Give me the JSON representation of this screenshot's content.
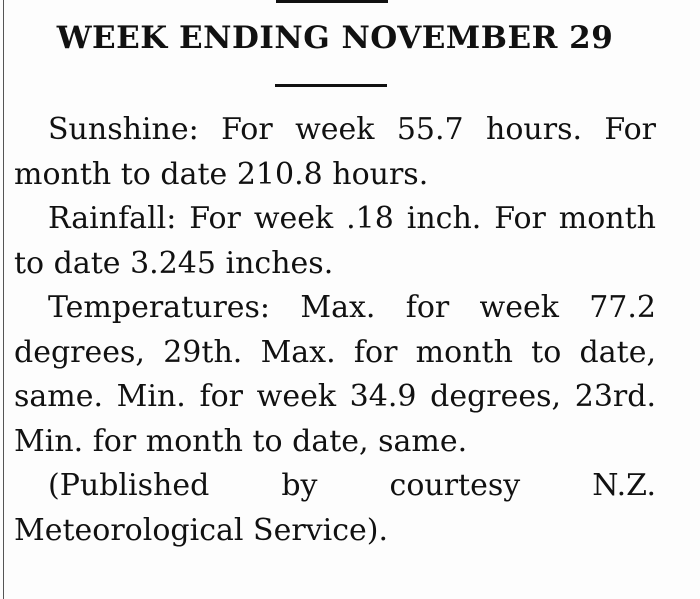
{
  "article": {
    "heading": "WEEK ENDING NOVEMBER 29",
    "paragraphs": [
      "Sunshine: For week 55.7 hours. For month to date 210.8 hours.",
      "Rainfall: For week .18 inch. For month to date 3.245 inches.",
      "Temperatures: Max. for week 77.2 degrees, 29th. Max. for month to date, same. Min. for week 34.9 degrees, 23rd. Min. for month to date, same.",
      "(Published by courtesy N.Z. Meteorological Service)."
    ]
  }
}
